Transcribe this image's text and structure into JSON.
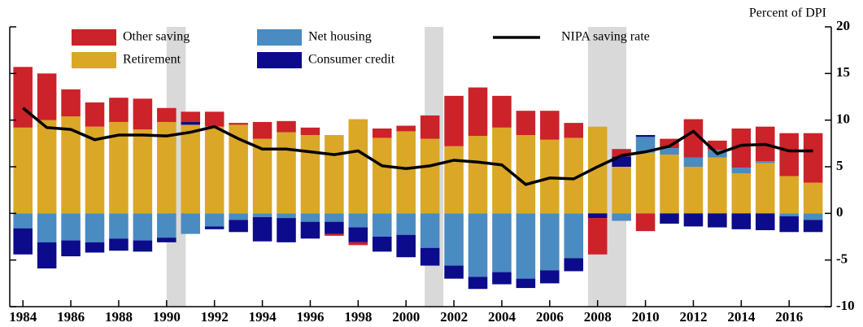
{
  "chart_data": {
    "type": "bar",
    "stacked": true,
    "y_axis_label": "Percent of DPI",
    "x": [
      1984,
      1985,
      1986,
      1987,
      1988,
      1989,
      1990,
      1991,
      1992,
      1993,
      1994,
      1995,
      1996,
      1997,
      1998,
      1999,
      2000,
      2001,
      2002,
      2003,
      2004,
      2005,
      2006,
      2007,
      2008,
      2009,
      2010,
      2011,
      2012,
      2013,
      2014,
      2015,
      2016,
      2017
    ],
    "xlim": [
      1983.45,
      2017.76
    ],
    "xticks": [
      1984,
      1986,
      1988,
      1990,
      1992,
      1994,
      1996,
      1998,
      2000,
      2002,
      2004,
      2006,
      2008,
      2010,
      2012,
      2014,
      2016
    ],
    "ylim": [
      -10,
      20
    ],
    "yticks": [
      20,
      15,
      10,
      5,
      0,
      -5,
      -10
    ],
    "shaded_periods": [
      [
        1990.0,
        1990.8
      ],
      [
        2000.78,
        2001.56
      ],
      [
        2007.6,
        2009.2
      ]
    ],
    "series": [
      {
        "name": "Retirement",
        "color": "#dba726",
        "values": [
          9.2,
          10.0,
          10.4,
          9.3,
          9.8,
          9.0,
          9.8,
          9.5,
          9.3,
          9.5,
          8.0,
          8.7,
          8.4,
          8.4,
          10.1,
          8.1,
          8.8,
          8.0,
          7.2,
          8.3,
          9.2,
          8.4,
          7.9,
          8.1,
          9.3,
          5.0,
          6.5,
          6.3,
          5.0,
          6.0,
          4.3,
          5.4,
          4.0,
          3.3
        ]
      },
      {
        "name": "Net housing",
        "color": "#4a8bc2",
        "values": [
          -1.6,
          -3.1,
          -2.9,
          -3.1,
          -2.7,
          -2.9,
          -2.6,
          -2.2,
          -1.4,
          -0.7,
          -0.4,
          -0.5,
          -0.9,
          -0.9,
          -1.5,
          -2.5,
          -2.3,
          -3.7,
          -5.6,
          -6.8,
          -6.3,
          -7.0,
          -6.1,
          -4.8,
          0,
          -0.8,
          1.7,
          0.7,
          1.0,
          0.8,
          0.6,
          0.2,
          -0.3,
          -0.7
        ]
      },
      {
        "name": "Consumer credit",
        "color": "#0b0b8c",
        "values": [
          -2.8,
          -2.8,
          -1.7,
          -1.1,
          -1.3,
          -1.2,
          -0.5,
          0.3,
          -0.3,
          -1.3,
          -2.6,
          -2.6,
          -1.8,
          -1.3,
          -1.6,
          -1.6,
          -2.4,
          -1.9,
          -1.4,
          -1.3,
          -1.3,
          -1.0,
          -1.4,
          -1.4,
          -0.5,
          1.1,
          0.2,
          -1.1,
          -1.4,
          -1.5,
          -1.7,
          -1.8,
          -1.7,
          -1.3
        ]
      },
      {
        "name": "Other saving",
        "color": "#cc2229",
        "values": [
          6.5,
          5.0,
          2.9,
          2.6,
          2.6,
          3.3,
          1.5,
          1.1,
          1.6,
          0.2,
          1.8,
          1.2,
          0.8,
          -0.2,
          -0.3,
          1.0,
          0.6,
          2.5,
          5.4,
          5.2,
          3.4,
          2.6,
          3.1,
          1.6,
          -3.9,
          0.8,
          -1.9,
          1.0,
          4.1,
          1.0,
          4.2,
          3.7,
          4.6,
          5.3
        ]
      }
    ],
    "line_series": {
      "name": "NIPA saving rate",
      "color": "#000000",
      "values": [
        11.3,
        9.2,
        9.0,
        7.9,
        8.4,
        8.4,
        8.3,
        8.7,
        9.3,
        8.0,
        6.9,
        6.9,
        6.6,
        6.3,
        6.7,
        5.1,
        4.8,
        5.1,
        5.7,
        5.5,
        5.2,
        3.1,
        3.8,
        3.7,
        5.0,
        6.2,
        6.6,
        7.2,
        8.8,
        6.4,
        7.3,
        7.4,
        6.7,
        6.7
      ]
    }
  }
}
